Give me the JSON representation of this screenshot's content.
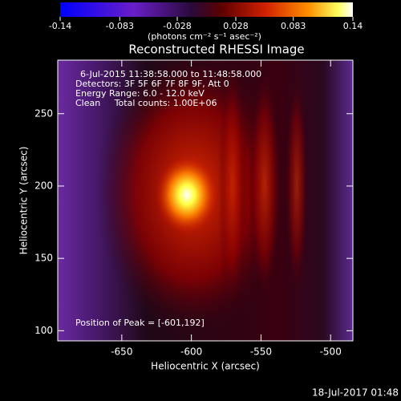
{
  "chart_data": {
    "type": "image",
    "title": "Reconstructed RHESSI Image",
    "colorbar": {
      "lim": [
        -0.14,
        0.14
      ],
      "ticks": [
        -0.14,
        -0.083,
        -0.028,
        0.028,
        0.083,
        0.14
      ],
      "label": "(photons cm⁻² s⁻¹ asec⁻²)"
    },
    "xlabel": "Heliocentric X (arcsec)",
    "ylabel": "Heliocentric Y (arcsec)",
    "xlim": [
      -696,
      -484
    ],
    "xticks": [
      -650,
      -600,
      -550,
      -500
    ],
    "ylim": [
      93,
      287
    ],
    "yticks": [
      100,
      150,
      200,
      250
    ],
    "annotations": [
      "6-Jul-2015 11:38:58.000 to 11:48:58.000",
      "Detectors: 3F 5F 6F 7F 8F 9F, Att 0",
      "Energy Range: 6.0 - 12.0 keV",
      "Clean     Total counts: 1.00E+06"
    ],
    "peak_label": "Position of Peak = [-601,192]",
    "footer": "18-Jul-2017 01:48"
  }
}
